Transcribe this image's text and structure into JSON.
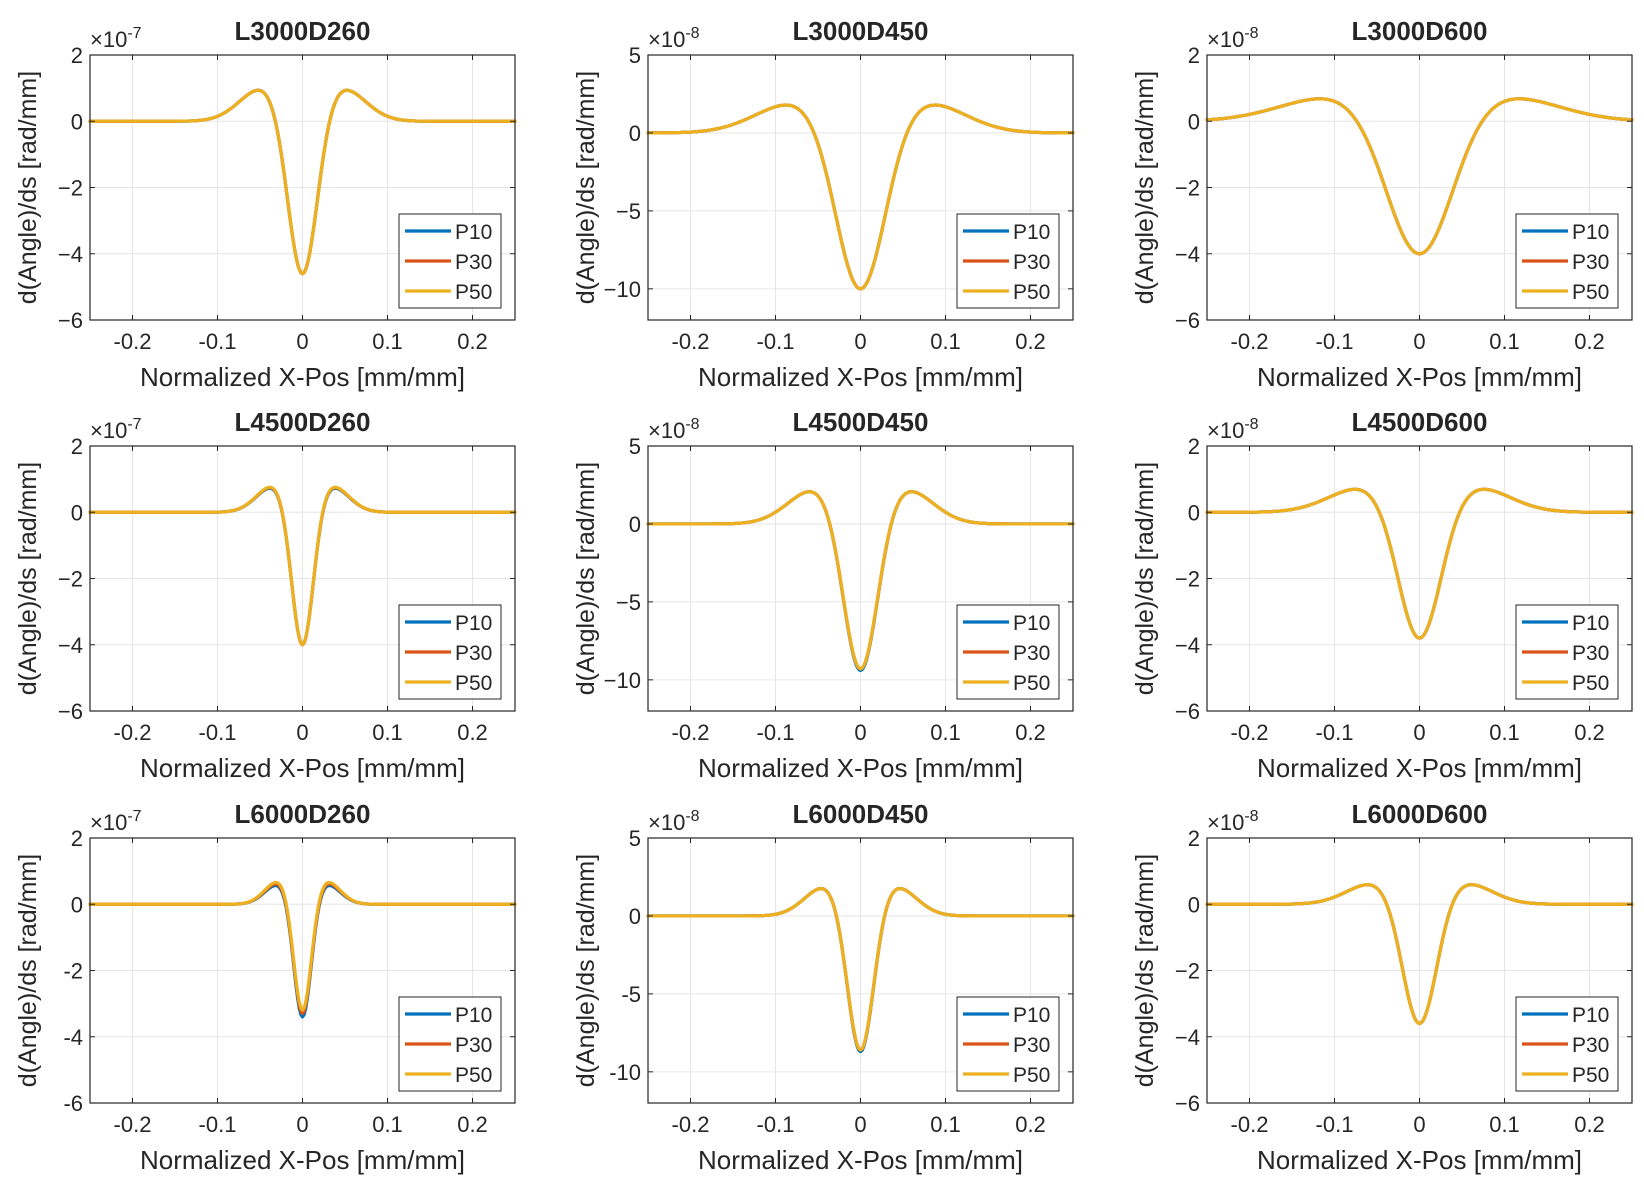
{
  "figure": {
    "type": "grid_of_line_charts",
    "rows": 3,
    "cols": 3
  },
  "colors": {
    "P10": "#0072BD",
    "P30": "#D95319",
    "P50": "#EDB120"
  },
  "chart_data": [
    {
      "type": "line",
      "title": "L3000D260",
      "xlabel": "Normalized X-Pos [mm/mm]",
      "ylabel": "d(Angle)/ds [rad/mm]",
      "multiplier": "×10",
      "exponent": "-7",
      "xlim": [
        -0.25,
        0.25
      ],
      "ylim": [
        -6,
        2
      ],
      "xticks": [
        -0.2,
        -0.1,
        0,
        0.1,
        0.2
      ],
      "xtick_labels": [
        "-0.2",
        "-0.1",
        "0",
        "0.1",
        "0.2"
      ],
      "yticks": [
        2,
        0,
        -2,
        -4,
        -6
      ],
      "ytick_labels": [
        "2",
        "0",
        "−2",
        "−4",
        "−6"
      ],
      "legend": [
        "P10",
        "P30",
        "P50"
      ],
      "legend_position": "lower-right",
      "grid": true,
      "series": [
        {
          "name": "P10",
          "min": -4.6,
          "side_peak": 0.85,
          "side_peak_x": 0.045
        },
        {
          "name": "P30",
          "min": -4.6,
          "side_peak": 0.85,
          "side_peak_x": 0.045
        },
        {
          "name": "P50",
          "min": -4.6,
          "side_peak": 0.85,
          "side_peak_x": 0.045
        }
      ]
    },
    {
      "type": "line",
      "title": "L3000D450",
      "xlabel": "Normalized X-Pos [mm/mm]",
      "ylabel": "d(Angle)/ds [rad/mm]",
      "multiplier": "×10",
      "exponent": "-8",
      "xlim": [
        -0.25,
        0.25
      ],
      "ylim": [
        -12,
        5
      ],
      "xticks": [
        -0.2,
        -0.1,
        0,
        0.1,
        0.2
      ],
      "xtick_labels": [
        "-0.2",
        "-0.1",
        "0",
        "0.1",
        "0.2"
      ],
      "yticks": [
        5,
        0,
        -5,
        -10
      ],
      "ytick_labels": [
        "5",
        "0",
        "−5",
        "−10"
      ],
      "legend": [
        "P10",
        "P30",
        "P50"
      ],
      "legend_position": "lower-right",
      "grid": true,
      "series": [
        {
          "name": "P10",
          "min": -10.0,
          "side_peak": 1.6,
          "side_peak_x": 0.075
        },
        {
          "name": "P30",
          "min": -10.0,
          "side_peak": 1.6,
          "side_peak_x": 0.075
        },
        {
          "name": "P50",
          "min": -10.0,
          "side_peak": 1.6,
          "side_peak_x": 0.075
        }
      ]
    },
    {
      "type": "line",
      "title": "L3000D600",
      "xlabel": "Normalized X-Pos [mm/mm]",
      "ylabel": "d(Angle)/ds [rad/mm]",
      "multiplier": "×10",
      "exponent": "-8",
      "xlim": [
        -0.25,
        0.25
      ],
      "ylim": [
        -6,
        2
      ],
      "xticks": [
        -0.2,
        -0.1,
        0,
        0.1,
        0.2
      ],
      "xtick_labels": [
        "-0.2",
        "-0.1",
        "0",
        "0.1",
        "0.2"
      ],
      "yticks": [
        2,
        0,
        -2,
        -4,
        -6
      ],
      "ytick_labels": [
        "2",
        "0",
        "−2",
        "−4",
        "−6"
      ],
      "legend": [
        "P10",
        "P30",
        "P50"
      ],
      "legend_position": "lower-right",
      "grid": true,
      "series": [
        {
          "name": "P10",
          "min": -4.0,
          "side_peak": 0.6,
          "side_peak_x": 0.1
        },
        {
          "name": "P30",
          "min": -4.0,
          "side_peak": 0.6,
          "side_peak_x": 0.1
        },
        {
          "name": "P50",
          "min": -4.0,
          "side_peak": 0.6,
          "side_peak_x": 0.1
        }
      ]
    },
    {
      "type": "line",
      "title": "L4500D260",
      "xlabel": "Normalized X-Pos [mm/mm]",
      "ylabel": "d(Angle)/ds [rad/mm]",
      "multiplier": "×10",
      "exponent": "-7",
      "xlim": [
        -0.25,
        0.25
      ],
      "ylim": [
        -6,
        2
      ],
      "xticks": [
        -0.2,
        -0.1,
        0,
        0.1,
        0.2
      ],
      "xtick_labels": [
        "-0.2",
        "-0.1",
        "0",
        "0.1",
        "0.2"
      ],
      "yticks": [
        2,
        0,
        -2,
        -4,
        -6
      ],
      "ytick_labels": [
        "2",
        "0",
        "−2",
        "−4",
        "−6"
      ],
      "legend": [
        "P10",
        "P30",
        "P50"
      ],
      "legend_position": "lower-right",
      "grid": true,
      "series": [
        {
          "name": "P10",
          "min": -4.0,
          "side_peak": 0.65,
          "side_peak_x": 0.033
        },
        {
          "name": "P30",
          "min": -4.0,
          "side_peak": 0.67,
          "side_peak_x": 0.033
        },
        {
          "name": "P50",
          "min": -4.0,
          "side_peak": 0.68,
          "side_peak_x": 0.033
        }
      ]
    },
    {
      "type": "line",
      "title": "L4500D450",
      "xlabel": "Normalized X-Pos [mm/mm]",
      "ylabel": "d(Angle)/ds [rad/mm]",
      "multiplier": "×10",
      "exponent": "-8",
      "xlim": [
        -0.25,
        0.25
      ],
      "ylim": [
        -12,
        5
      ],
      "xticks": [
        -0.2,
        -0.1,
        0,
        0.1,
        0.2
      ],
      "xtick_labels": [
        "-0.2",
        "-0.1",
        "0",
        "0.1",
        "0.2"
      ],
      "yticks": [
        5,
        0,
        -5,
        -10
      ],
      "ytick_labels": [
        "5",
        "0",
        "−5",
        "−10"
      ],
      "legend": [
        "P10",
        "P30",
        "P50"
      ],
      "legend_position": "lower-right",
      "grid": true,
      "series": [
        {
          "name": "P10",
          "min": -9.4,
          "side_peak": 1.9,
          "side_peak_x": 0.052
        },
        {
          "name": "P30",
          "min": -9.3,
          "side_peak": 1.9,
          "side_peak_x": 0.052
        },
        {
          "name": "P50",
          "min": -9.3,
          "side_peak": 1.9,
          "side_peak_x": 0.052
        }
      ]
    },
    {
      "type": "line",
      "title": "L4500D600",
      "xlabel": "Normalized X-Pos [mm/mm]",
      "ylabel": "d(Angle)/ds [rad/mm]",
      "multiplier": "×10",
      "exponent": "-8",
      "xlim": [
        -0.25,
        0.25
      ],
      "ylim": [
        -6,
        2
      ],
      "xticks": [
        -0.2,
        -0.1,
        0,
        0.1,
        0.2
      ],
      "xtick_labels": [
        "-0.2",
        "-0.1",
        "0",
        "0.1",
        "0.2"
      ],
      "yticks": [
        2,
        0,
        -2,
        -4,
        -6
      ],
      "ytick_labels": [
        "2",
        "0",
        "−2",
        "−4",
        "−6"
      ],
      "legend": [
        "P10",
        "P30",
        "P50"
      ],
      "legend_position": "lower-right",
      "grid": true,
      "series": [
        {
          "name": "P10",
          "min": -3.8,
          "side_peak": 0.62,
          "side_peak_x": 0.065
        },
        {
          "name": "P30",
          "min": -3.8,
          "side_peak": 0.62,
          "side_peak_x": 0.065
        },
        {
          "name": "P50",
          "min": -3.8,
          "side_peak": 0.62,
          "side_peak_x": 0.065
        }
      ]
    },
    {
      "type": "line",
      "title": "L6000D260",
      "xlabel": "Normalized X-Pos [mm/mm]",
      "ylabel": "d(Angle)/ds [rad/mm]",
      "multiplier": "×10",
      "exponent": "-7",
      "xlim": [
        -0.25,
        0.25
      ],
      "ylim": [
        -6,
        2
      ],
      "xticks": [
        -0.2,
        -0.1,
        0,
        0.1,
        0.2
      ],
      "xtick_labels": [
        "-0.2",
        "-0.1",
        "0",
        "0.1",
        "0.2"
      ],
      "yticks": [
        2,
        0,
        -2,
        -4,
        -6
      ],
      "ytick_labels": [
        "2",
        "0",
        "-2",
        "-4",
        "-6"
      ],
      "legend": [
        "P10",
        "P30",
        "P50"
      ],
      "legend_position": "lower-right",
      "grid": true,
      "series": [
        {
          "name": "P10",
          "min": -3.4,
          "side_peak": 0.5,
          "side_peak_x": 0.027
        },
        {
          "name": "P30",
          "min": -3.3,
          "side_peak": 0.55,
          "side_peak_x": 0.027
        },
        {
          "name": "P50",
          "min": -3.2,
          "side_peak": 0.6,
          "side_peak_x": 0.027
        }
      ]
    },
    {
      "type": "line",
      "title": "L6000D450",
      "xlabel": "Normalized X-Pos [mm/mm]",
      "ylabel": "d(Angle)/ds [rad/mm]",
      "multiplier": "×10",
      "exponent": "-8",
      "xlim": [
        -0.25,
        0.25
      ],
      "ylim": [
        -12,
        5
      ],
      "xticks": [
        -0.2,
        -0.1,
        0,
        0.1,
        0.2
      ],
      "xtick_labels": [
        "-0.2",
        "-0.1",
        "0",
        "0.1",
        "0.2"
      ],
      "yticks": [
        5,
        0,
        -5,
        -10
      ],
      "ytick_labels": [
        "5",
        "0",
        "-5",
        "-10"
      ],
      "legend": [
        "P10",
        "P30",
        "P50"
      ],
      "legend_position": "lower-right",
      "grid": true,
      "series": [
        {
          "name": "P10",
          "min": -8.7,
          "side_peak": 1.6,
          "side_peak_x": 0.04
        },
        {
          "name": "P30",
          "min": -8.6,
          "side_peak": 1.6,
          "side_peak_x": 0.04
        },
        {
          "name": "P50",
          "min": -8.6,
          "side_peak": 1.6,
          "side_peak_x": 0.04
        }
      ]
    },
    {
      "type": "line",
      "title": "L6000D600",
      "xlabel": "Normalized X-Pos [mm/mm]",
      "ylabel": "d(Angle)/ds [rad/mm]",
      "multiplier": "×10",
      "exponent": "-8",
      "xlim": [
        -0.25,
        0.25
      ],
      "ylim": [
        -6,
        2
      ],
      "xticks": [
        -0.2,
        -0.1,
        0,
        0.1,
        0.2
      ],
      "xtick_labels": [
        "-0.2",
        "-0.1",
        "0",
        "0.1",
        "0.2"
      ],
      "yticks": [
        2,
        0,
        -2,
        -4,
        -6
      ],
      "ytick_labels": [
        "2",
        "0",
        "−2",
        "−4",
        "−6"
      ],
      "legend": [
        "P10",
        "P30",
        "P50"
      ],
      "legend_position": "lower-right",
      "grid": true,
      "series": [
        {
          "name": "P10",
          "min": -3.6,
          "side_peak": 0.52,
          "side_peak_x": 0.052
        },
        {
          "name": "P30",
          "min": -3.6,
          "side_peak": 0.52,
          "side_peak_x": 0.052
        },
        {
          "name": "P50",
          "min": -3.6,
          "side_peak": 0.52,
          "side_peak_x": 0.052
        }
      ]
    }
  ]
}
